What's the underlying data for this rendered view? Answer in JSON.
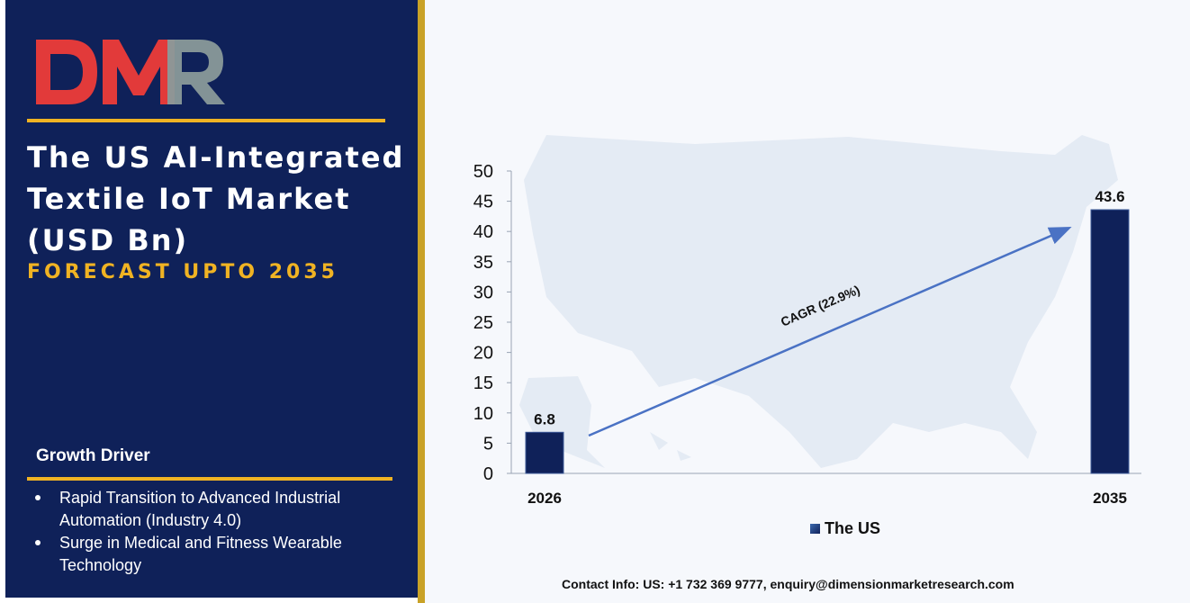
{
  "logo": {
    "text": "DMR",
    "colors": {
      "red": "#e23a3a",
      "gray": "#8a9a9a"
    }
  },
  "title": "The US AI-Integrated Textile IoT Market (USD Bn)",
  "subtitle": "FORECAST UPTO 2035",
  "growth": {
    "heading": "Growth Driver",
    "drivers": [
      "Rapid Transition to Advanced Industrial Automation (Industry 4.0)",
      "Surge in Medical and Fitness Wearable Technology"
    ]
  },
  "chart_data": {
    "type": "bar",
    "categories": [
      "2026",
      "2035"
    ],
    "series": [
      {
        "name": "The US",
        "values": [
          6.8,
          43.6
        ]
      }
    ],
    "ylim": [
      0,
      50
    ],
    "yticks": [
      0,
      5,
      10,
      15,
      20,
      25,
      30,
      35,
      40,
      45,
      50
    ],
    "annotation": "CAGR (22.9%)",
    "legend_position": "bottom",
    "grid": false,
    "bar_color": "#0f2159"
  },
  "contact": "Contact Info: US: +1 732 369 9777, enquiry@dimensionmarketresearch.com",
  "colors": {
    "navy": "#0f2159",
    "gold": "#f0b323",
    "arrow": "#4a72c4"
  }
}
